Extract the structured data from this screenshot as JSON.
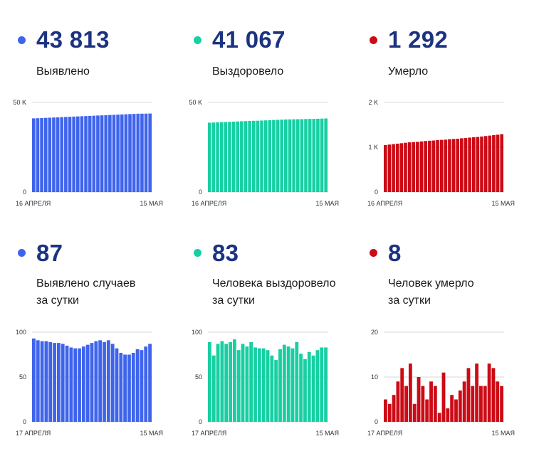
{
  "colors": {
    "blue": "#3f64ec",
    "green": "#17cfa2",
    "red": "#cc0b16",
    "number": "#1c3380",
    "grid": "#d9d9d9"
  },
  "panels": [
    {
      "value": "43 813",
      "label1": "Выявлено",
      "label2": "",
      "color": "blue"
    },
    {
      "value": "41 067",
      "label1": "Выздоровело",
      "label2": "",
      "color": "green"
    },
    {
      "value": "1 292",
      "label1": "Умерло",
      "label2": "",
      "color": "red"
    },
    {
      "value": "87",
      "label1": "Выявлено случаев",
      "label2": "за сутки",
      "color": "blue"
    },
    {
      "value": "83",
      "label1": "Человека выздоровело",
      "label2": "за сутки",
      "color": "green"
    },
    {
      "value": "8",
      "label1": "Человек умерло",
      "label2": "за сутки",
      "color": "red"
    }
  ],
  "chart_data": [
    {
      "type": "bar",
      "title": "Выявлено",
      "x_start": "16 АПРЕЛЯ",
      "x_end": "15 МАЯ",
      "yticks": [
        "0",
        "50 K"
      ],
      "ylim": [
        0,
        50000
      ],
      "grid": true,
      "values": [
        41100,
        41200,
        41300,
        41400,
        41500,
        41600,
        41700,
        41800,
        41900,
        42000,
        42100,
        42200,
        42300,
        42400,
        42500,
        42600,
        42700,
        42800,
        42900,
        43000,
        43100,
        43200,
        43300,
        43400,
        43500,
        43600,
        43700,
        43730,
        43760,
        43813
      ]
    },
    {
      "type": "bar",
      "title": "Выздоровело",
      "x_start": "16 АПРЕЛЯ",
      "x_end": "15 МАЯ",
      "yticks": [
        "0",
        "50 K"
      ],
      "ylim": [
        0,
        50000
      ],
      "grid": true,
      "values": [
        38700,
        38800,
        38900,
        39000,
        39100,
        39200,
        39300,
        39400,
        39500,
        39600,
        39700,
        39750,
        39800,
        39900,
        40000,
        40100,
        40200,
        40300,
        40400,
        40500,
        40550,
        40600,
        40650,
        40700,
        40750,
        40800,
        40850,
        40900,
        40980,
        41067
      ]
    },
    {
      "type": "bar",
      "title": "Умерло",
      "x_start": "16 АПРЕЛЯ",
      "x_end": "15 МАЯ",
      "yticks": [
        "0",
        "1 K",
        "2 K"
      ],
      "ylim": [
        0,
        2000
      ],
      "grid": true,
      "values": [
        1050,
        1060,
        1070,
        1080,
        1090,
        1100,
        1110,
        1115,
        1120,
        1130,
        1140,
        1145,
        1150,
        1160,
        1165,
        1170,
        1180,
        1185,
        1190,
        1200,
        1205,
        1215,
        1225,
        1230,
        1240,
        1250,
        1260,
        1270,
        1280,
        1292
      ]
    },
    {
      "type": "bar",
      "title": "Выявлено случаев за сутки",
      "x_start": "17 АПРЕЛЯ",
      "x_end": "15 МАЯ",
      "yticks": [
        "0",
        "50",
        "100"
      ],
      "ylim": [
        0,
        100
      ],
      "grid": true,
      "values": [
        93,
        91,
        90,
        90,
        89,
        88,
        88,
        87,
        85,
        83,
        82,
        82,
        84,
        86,
        88,
        90,
        91,
        89,
        91,
        87,
        82,
        77,
        75,
        75,
        77,
        81,
        80,
        84,
        87
      ]
    },
    {
      "type": "bar",
      "title": "Человека выздоровело за сутки",
      "x_start": "17 АПРЕЛЯ",
      "x_end": "15 МАЯ",
      "yticks": [
        "0",
        "50",
        "100"
      ],
      "ylim": [
        0,
        100
      ],
      "grid": true,
      "values": [
        89,
        74,
        87,
        90,
        87,
        89,
        92,
        80,
        87,
        84,
        89,
        83,
        82,
        82,
        80,
        74,
        69,
        81,
        86,
        84,
        82,
        89,
        76,
        70,
        78,
        74,
        80,
        83,
        83
      ]
    },
    {
      "type": "bar",
      "title": "Человек умерло за сутки",
      "x_start": "17 АПРЕЛЯ",
      "x_end": "15 МАЯ",
      "yticks": [
        "0",
        "10",
        "20"
      ],
      "ylim": [
        0,
        20
      ],
      "grid": true,
      "values": [
        5,
        4,
        6,
        9,
        12,
        8,
        13,
        4,
        10,
        8,
        5,
        9,
        8,
        2,
        11,
        3,
        6,
        5,
        7,
        9,
        12,
        8,
        13,
        8,
        8,
        13,
        12,
        9,
        8
      ]
    }
  ]
}
